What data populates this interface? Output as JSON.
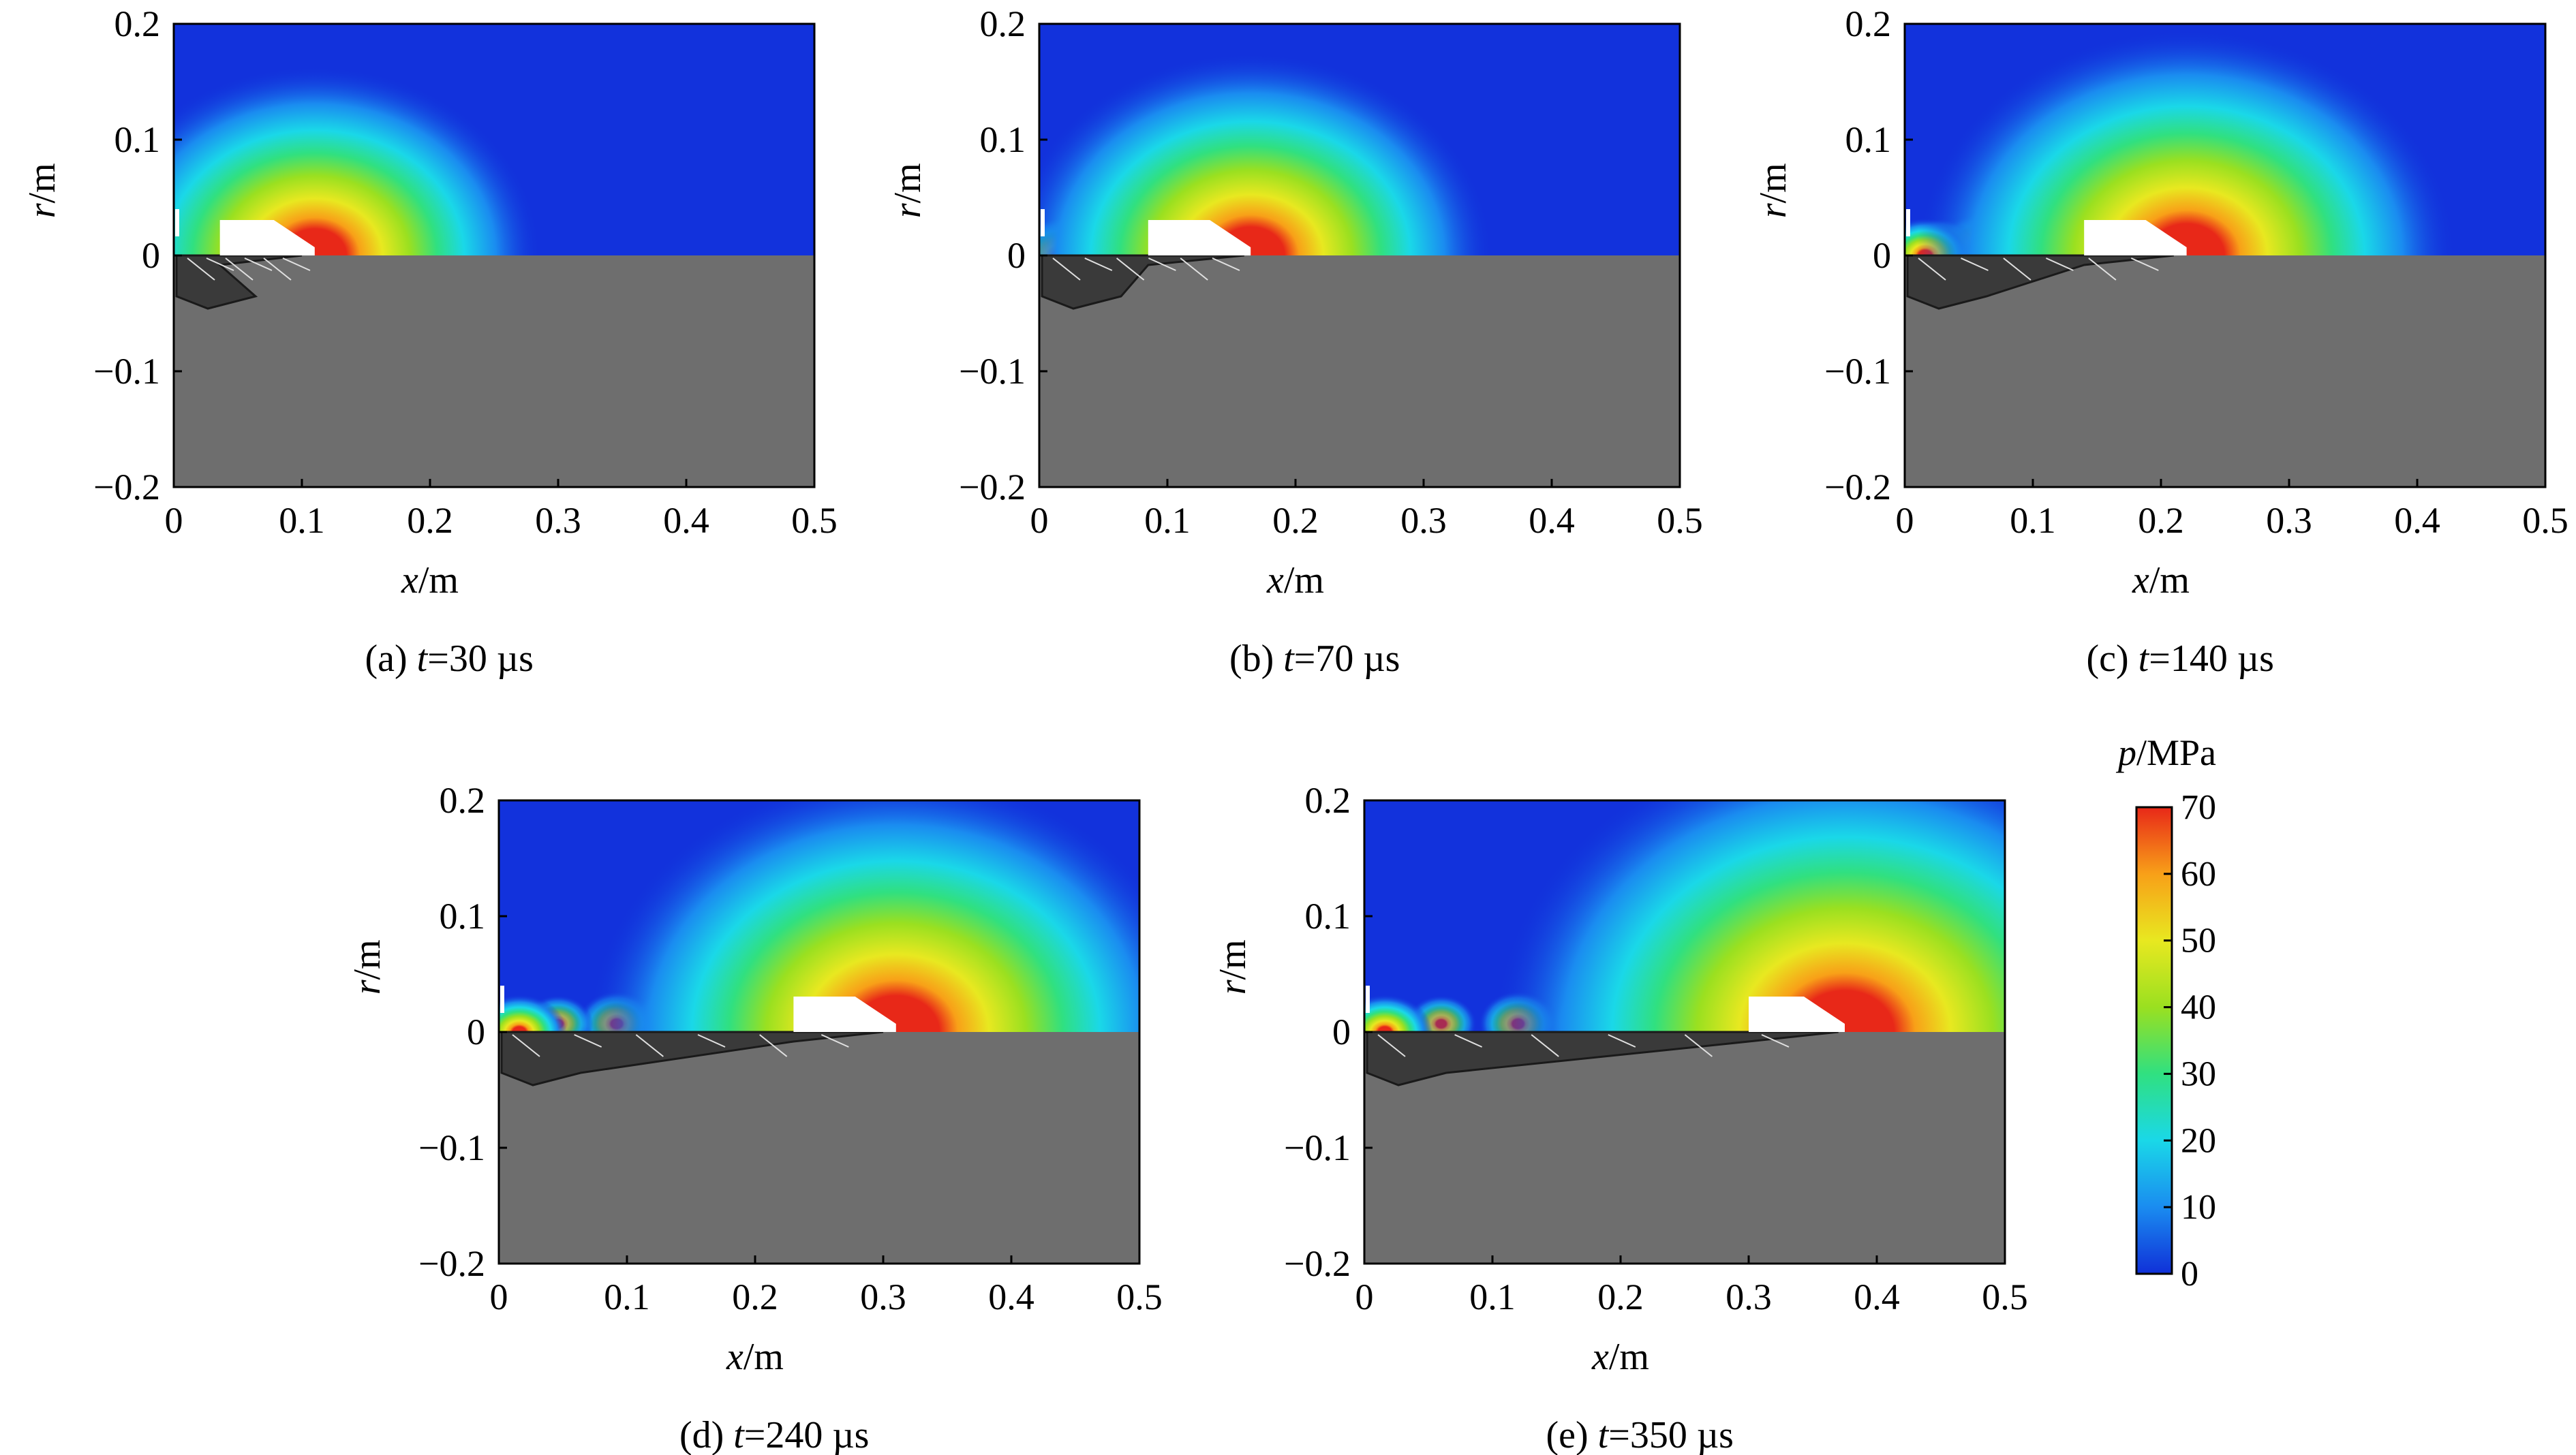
{
  "chart_data": [
    {
      "id": "a",
      "type": "heatmap",
      "caption_prefix": "(a) ",
      "caption_var": "t",
      "caption_value": "=30 µs",
      "time_us": 30,
      "xlabel_var": "x",
      "xlabel_unit": "/m",
      "ylabel_var": "r",
      "ylabel_unit": "/m",
      "xlim": [
        0,
        0.5
      ],
      "ylim": [
        -0.2,
        0.2
      ],
      "xticks": [
        0,
        0.1,
        0.2,
        0.3,
        0.4,
        0.5
      ],
      "yticks": [
        -0.2,
        -0.1,
        0,
        0.1,
        0.2
      ],
      "xtick_labels": [
        "0",
        "0.1",
        "0.2",
        "0.3",
        "0.4",
        "0.5"
      ],
      "ytick_labels": [
        "−0.2",
        "−0.1",
        "0",
        "0.1",
        "0.2"
      ],
      "pressure_peak_x": 0.11,
      "body_nose_x": 0.11,
      "body_tail_x": 0.036,
      "debris_end_x": 0.1
    },
    {
      "id": "b",
      "type": "heatmap",
      "caption_prefix": "(b) ",
      "caption_var": "t",
      "caption_value": "=70 µs",
      "time_us": 70,
      "xlabel_var": "x",
      "xlabel_unit": "/m",
      "ylabel_var": "r",
      "ylabel_unit": "/m",
      "xlim": [
        0,
        0.5
      ],
      "ylim": [
        -0.2,
        0.2
      ],
      "xticks": [
        0,
        0.1,
        0.2,
        0.3,
        0.4,
        0.5
      ],
      "yticks": [
        -0.2,
        -0.1,
        0,
        0.1,
        0.2
      ],
      "xtick_labels": [
        "0",
        "0.1",
        "0.2",
        "0.3",
        "0.4",
        "0.5"
      ],
      "ytick_labels": [
        "−0.2",
        "−0.1",
        "0",
        "0.1",
        "0.2"
      ],
      "pressure_peak_x": 0.165,
      "body_nose_x": 0.165,
      "body_tail_x": 0.085,
      "debris_end_x": 0.16
    },
    {
      "id": "c",
      "type": "heatmap",
      "caption_prefix": "(c) ",
      "caption_var": "t",
      "caption_value": "=140 µs",
      "time_us": 140,
      "xlabel_var": "x",
      "xlabel_unit": "/m",
      "ylabel_var": "r",
      "ylabel_unit": "/m",
      "xlim": [
        0,
        0.5
      ],
      "ylim": [
        -0.2,
        0.2
      ],
      "xticks": [
        0,
        0.1,
        0.2,
        0.3,
        0.4,
        0.5
      ],
      "yticks": [
        -0.2,
        -0.1,
        0,
        0.1,
        0.2
      ],
      "xtick_labels": [
        "0",
        "0.1",
        "0.2",
        "0.3",
        "0.4",
        "0.5"
      ],
      "ytick_labels": [
        "−0.2",
        "−0.1",
        "0",
        "0.1",
        "0.2"
      ],
      "pressure_peak_x": 0.22,
      "body_nose_x": 0.22,
      "body_tail_x": 0.14,
      "debris_end_x": 0.21
    },
    {
      "id": "d",
      "type": "heatmap",
      "caption_prefix": "(d) ",
      "caption_var": "t",
      "caption_value": "=240 µs",
      "time_us": 240,
      "xlabel_var": "x",
      "xlabel_unit": "/m",
      "ylabel_var": "r",
      "ylabel_unit": "/m",
      "xlim": [
        0,
        0.5
      ],
      "ylim": [
        -0.2,
        0.2
      ],
      "xticks": [
        0,
        0.1,
        0.2,
        0.3,
        0.4,
        0.5
      ],
      "yticks": [
        -0.2,
        -0.1,
        0,
        0.1,
        0.2
      ],
      "xtick_labels": [
        "0",
        "0.1",
        "0.2",
        "0.3",
        "0.4",
        "0.5"
      ],
      "ytick_labels": [
        "−0.2",
        "−0.1",
        "0",
        "0.1",
        "0.2"
      ],
      "pressure_peak_x": 0.31,
      "body_nose_x": 0.31,
      "body_tail_x": 0.23,
      "debris_end_x": 0.3
    },
    {
      "id": "e",
      "type": "heatmap",
      "caption_prefix": "(e) ",
      "caption_var": "t",
      "caption_value": "=350 µs",
      "time_us": 350,
      "xlabel_var": "x",
      "xlabel_unit": "/m",
      "ylabel_var": "r",
      "ylabel_unit": "/m",
      "xlim": [
        0,
        0.5
      ],
      "ylim": [
        -0.2,
        0.2
      ],
      "xticks": [
        0,
        0.1,
        0.2,
        0.3,
        0.4,
        0.5
      ],
      "yticks": [
        -0.2,
        -0.1,
        0,
        0.1,
        0.2
      ],
      "xtick_labels": [
        "0",
        "0.1",
        "0.2",
        "0.3",
        "0.4",
        "0.5"
      ],
      "ytick_labels": [
        "−0.2",
        "−0.1",
        "0",
        "0.1",
        "0.2"
      ],
      "pressure_peak_x": 0.375,
      "body_nose_x": 0.375,
      "body_tail_x": 0.3,
      "debris_end_x": 0.37
    }
  ],
  "colorbar": {
    "label_var": "p",
    "label_unit": "/MPa",
    "range": [
      0,
      70
    ],
    "ticks": [
      0,
      10,
      20,
      30,
      40,
      50,
      60,
      70
    ],
    "tick_labels": [
      "0",
      "10",
      "20",
      "30",
      "40",
      "50",
      "60",
      "70"
    ],
    "colors": [
      "#1030d8",
      "#1a8cf0",
      "#1ad8e8",
      "#30e080",
      "#9ae020",
      "#e8e820",
      "#f8a018",
      "#e82818"
    ]
  },
  "colors": {
    "background_fluid": "#1232dc",
    "solid_target": "#6e6e6e",
    "projectile": "#ffffff",
    "debris": "#1a1a1a"
  }
}
